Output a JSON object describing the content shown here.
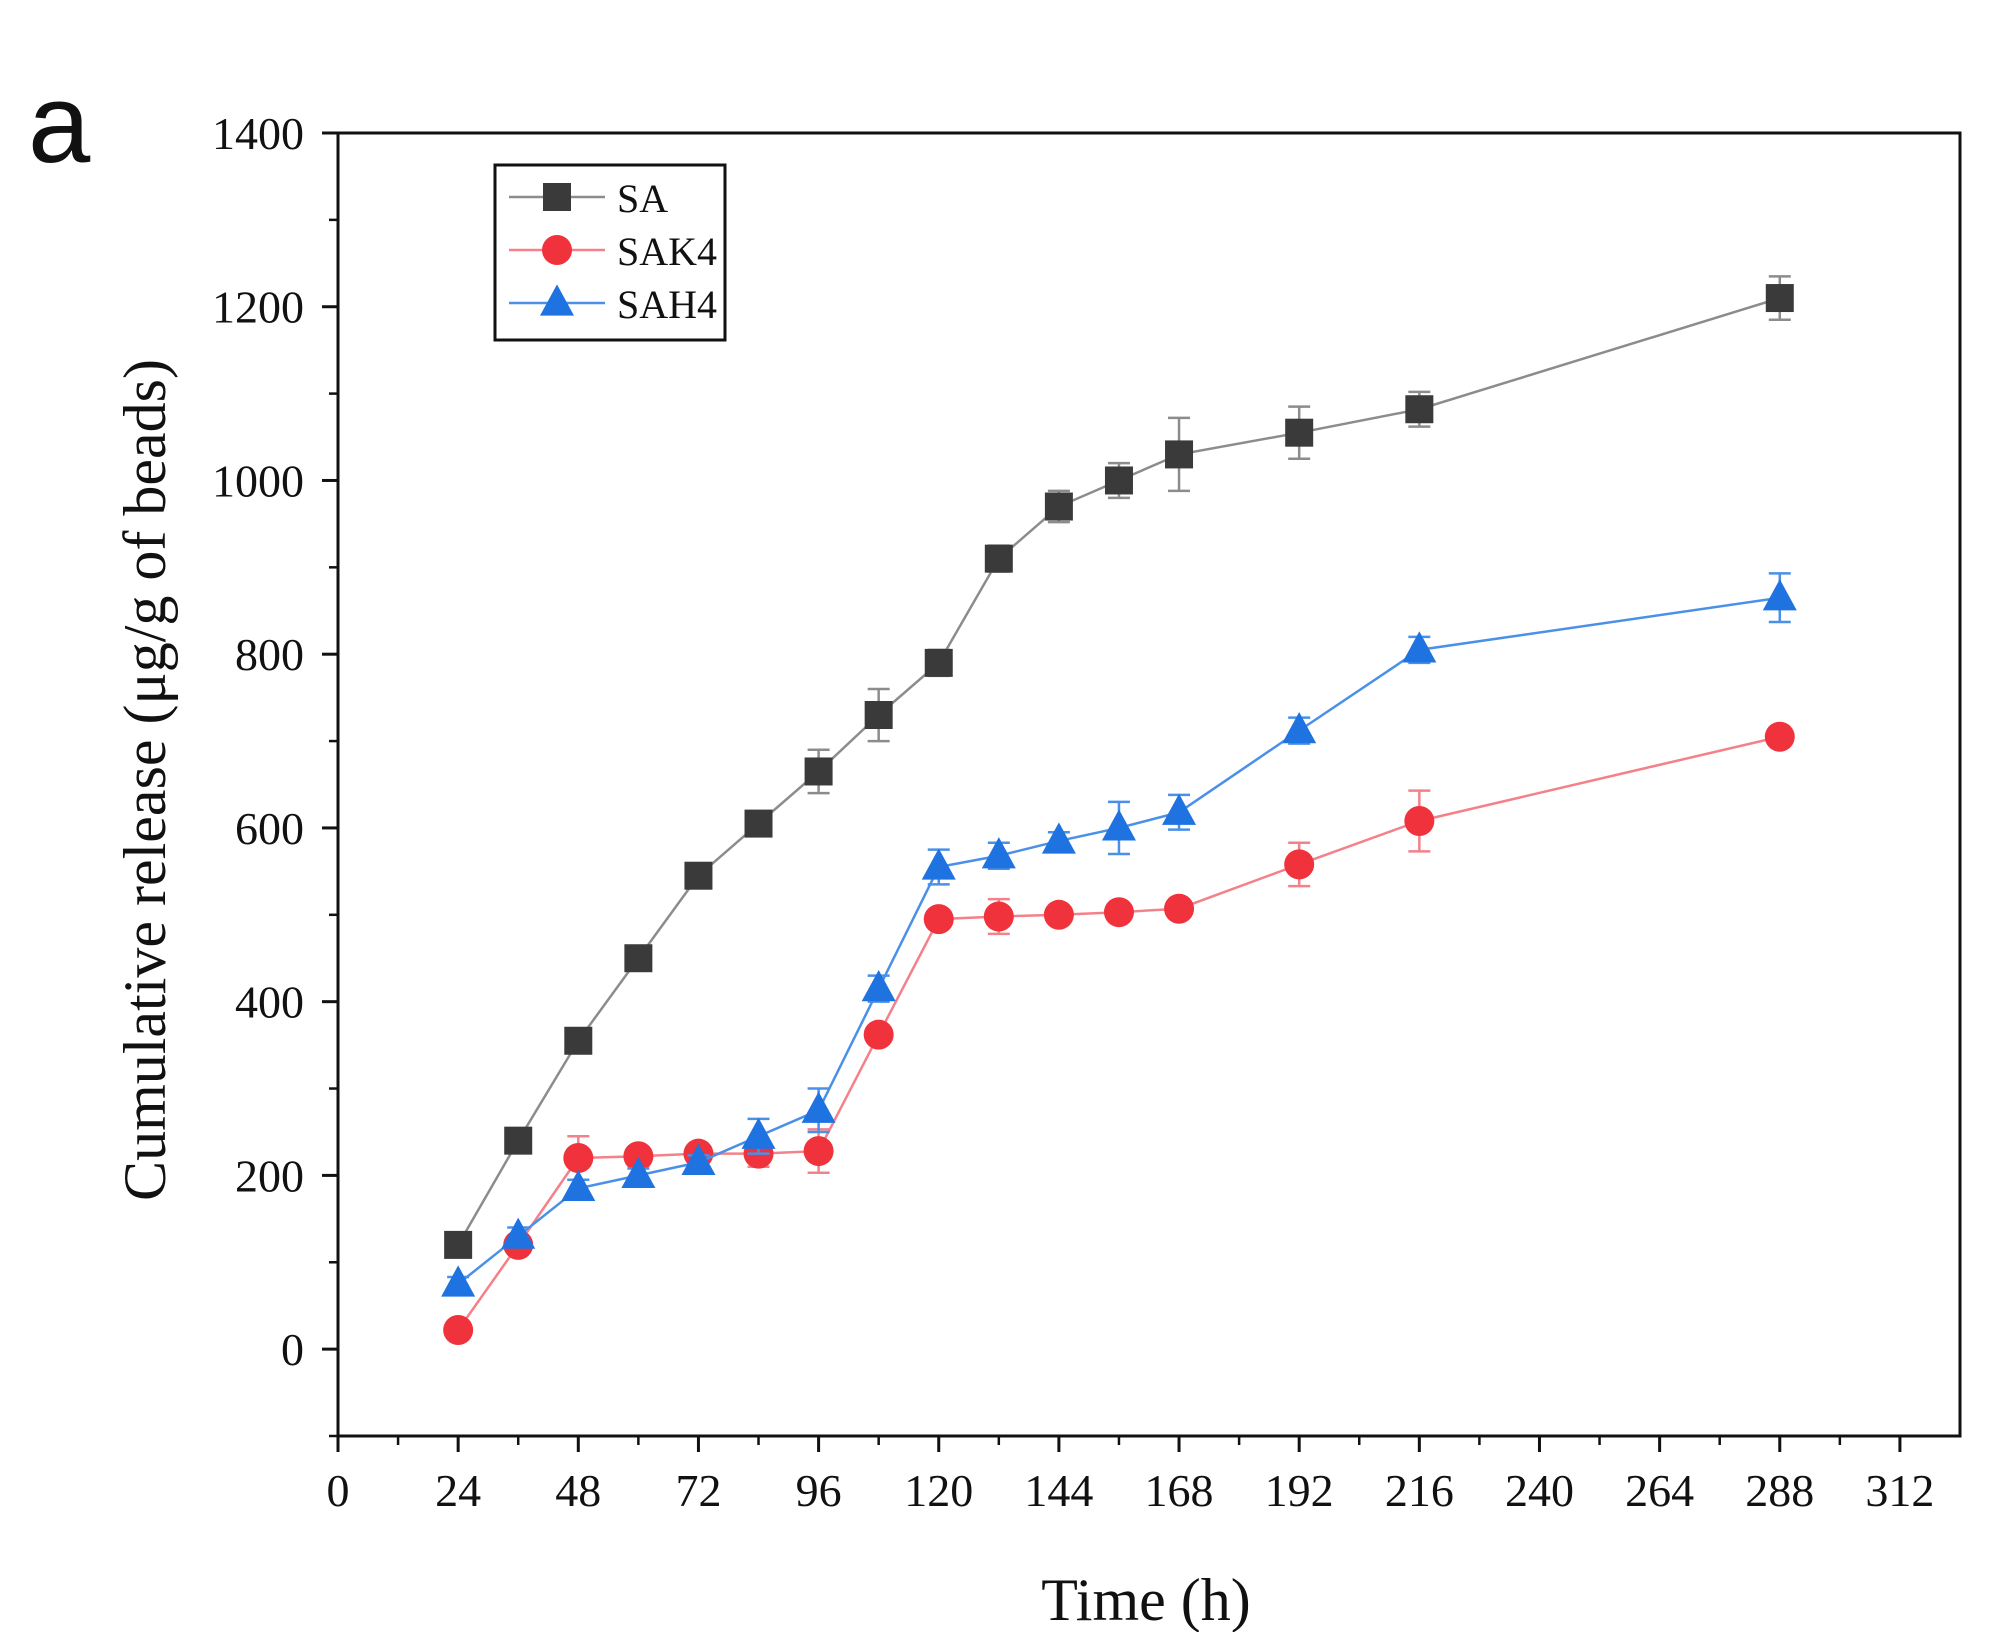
{
  "panel_label": "a",
  "chart_data": {
    "type": "line",
    "title": "",
    "xlabel": "Time (h)",
    "ylabel": "Cumulative release (μg/g of beads)",
    "xlim": [
      0,
      324
    ],
    "ylim": [
      -100,
      1400
    ],
    "xticks": [
      0,
      24,
      48,
      72,
      96,
      120,
      144,
      168,
      192,
      216,
      240,
      264,
      288,
      312
    ],
    "yticks": [
      0,
      200,
      400,
      600,
      800,
      1000,
      1200,
      1400
    ],
    "legend_position": "top-left",
    "x": [
      24,
      36,
      48,
      60,
      72,
      84,
      96,
      108,
      120,
      132,
      144,
      156,
      168,
      192,
      216,
      288
    ],
    "series": [
      {
        "name": "SA",
        "marker": "square",
        "color": "#3a3a3a",
        "line_color": "#8c8c8c",
        "values": [
          120,
          240,
          355,
          450,
          545,
          605,
          665,
          730,
          790,
          910,
          970,
          1000,
          1030,
          1055,
          1082,
          1210
        ],
        "errors": [
          8,
          10,
          10,
          8,
          8,
          10,
          25,
          30,
          15,
          15,
          18,
          20,
          42,
          30,
          20,
          25
        ]
      },
      {
        "name": "SAK4",
        "marker": "circle",
        "color": "#f0323c",
        "line_color": "#f4818a",
        "values": [
          22,
          120,
          220,
          222,
          225,
          225,
          228,
          362,
          495,
          498,
          500,
          503,
          507,
          558,
          608,
          705
        ],
        "errors": [
          5,
          8,
          25,
          8,
          8,
          15,
          25,
          10,
          10,
          20,
          8,
          10,
          10,
          25,
          35,
          10
        ]
      },
      {
        "name": "SAH4",
        "marker": "triangle",
        "color": "#1f73e0",
        "line_color": "#4a90e8",
        "values": [
          75,
          130,
          185,
          200,
          215,
          245,
          275,
          415,
          555,
          568,
          585,
          600,
          618,
          712,
          805,
          865
        ],
        "errors": [
          8,
          10,
          10,
          8,
          8,
          20,
          25,
          15,
          20,
          15,
          10,
          30,
          20,
          15,
          15,
          28
        ]
      }
    ]
  }
}
